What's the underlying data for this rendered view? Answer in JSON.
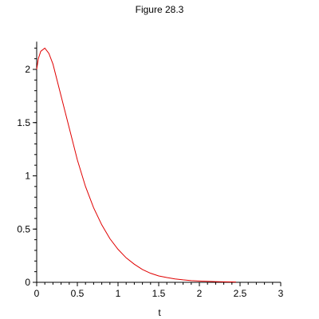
{
  "chart_data": {
    "type": "line",
    "title": "Figure 28.3",
    "xlabel": "t",
    "ylabel": "",
    "xlim": [
      0,
      3
    ],
    "ylim": [
      0,
      2.2
    ],
    "grid": false,
    "x_ticks": [
      "0",
      "0.5",
      "1",
      "1.5",
      "2",
      "2.5",
      "3"
    ],
    "y_ticks": [
      "0",
      "0.5",
      "1",
      "1.5",
      "2"
    ],
    "series": [
      {
        "color": "#e00000",
        "x": [
          0,
          0.02,
          0.05,
          0.1,
          0.15,
          0.2,
          0.3,
          0.4,
          0.5,
          0.6,
          0.7,
          0.8,
          0.9,
          1.0,
          1.1,
          1.2,
          1.3,
          1.4,
          1.5,
          1.6,
          1.7,
          1.8,
          1.9,
          2.0,
          2.1,
          2.2,
          2.3,
          2.4,
          2.45
        ],
        "y": [
          2.0,
          2.1,
          2.17,
          2.2,
          2.15,
          2.05,
          1.75,
          1.45,
          1.15,
          0.9,
          0.7,
          0.54,
          0.41,
          0.31,
          0.23,
          0.17,
          0.12,
          0.085,
          0.06,
          0.045,
          0.032,
          0.023,
          0.016,
          0.012,
          0.009,
          0.007,
          0.005,
          0.004,
          0.003
        ]
      }
    ]
  }
}
